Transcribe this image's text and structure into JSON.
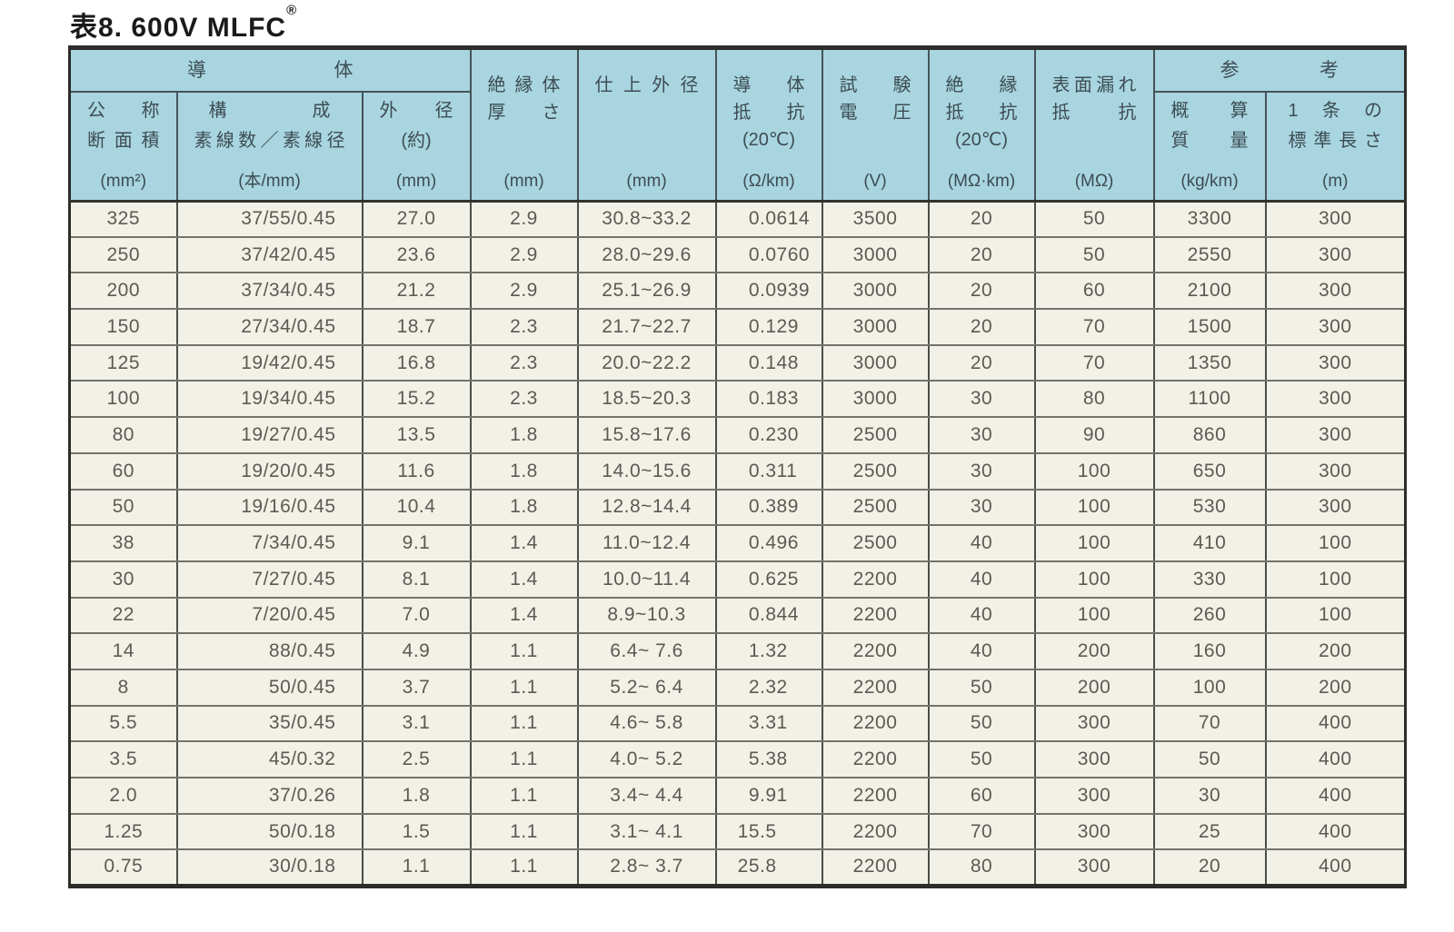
{
  "page": {
    "title": "表8. 600V MLFC",
    "registered_mark": "®"
  },
  "table": {
    "groups": [
      {
        "label": "導体",
        "span_columns": 3
      },
      {
        "label": "参考",
        "span_columns": 2
      }
    ],
    "columns": [
      {
        "id": "nominal-cross-section",
        "lines": [
          "公称",
          "断面積"
        ],
        "unit": "(mm²)"
      },
      {
        "id": "composition",
        "lines": [
          "構成",
          "素線数／素線径"
        ],
        "unit": "(本/mm)"
      },
      {
        "id": "conductor-outer-diameter",
        "lines": [
          "外径",
          "(約)"
        ],
        "unit": "(mm)"
      },
      {
        "id": "insulation-thickness",
        "lines": [
          "絶縁体",
          "厚さ"
        ],
        "unit": "(mm)"
      },
      {
        "id": "finished-outer-diameter",
        "lines": [
          "仕上外径"
        ],
        "unit": "(mm)"
      },
      {
        "id": "conductor-resistance",
        "lines": [
          "導体",
          "抵抗",
          "(20℃)"
        ],
        "unit": "(Ω/km)"
      },
      {
        "id": "test-voltage",
        "lines": [
          "試験",
          "電圧"
        ],
        "unit": "(V)"
      },
      {
        "id": "insulation-resistance",
        "lines": [
          "絶縁",
          "抵抗",
          "(20℃)"
        ],
        "unit": "(MΩ·km)"
      },
      {
        "id": "surface-leakage-resistance",
        "lines": [
          "表面漏れ",
          "抵抗"
        ],
        "unit": "(MΩ)"
      },
      {
        "id": "approximate-mass",
        "lines": [
          "概算",
          "質量"
        ],
        "unit": "(kg/km)"
      },
      {
        "id": "standard-length-per-piece",
        "lines": [
          "1条の",
          "標準長さ"
        ],
        "unit": "(m)"
      }
    ],
    "rows": [
      [
        "325",
        "37/55/0.45",
        "27.0",
        "2.9",
        "30.8~33.2",
        "0.0614",
        "3500",
        "20",
        "50",
        "3300",
        "300"
      ],
      [
        "250",
        "37/42/0.45",
        "23.6",
        "2.9",
        "28.0~29.6",
        "0.0760",
        "3000",
        "20",
        "50",
        "2550",
        "300"
      ],
      [
        "200",
        "37/34/0.45",
        "21.2",
        "2.9",
        "25.1~26.9",
        "0.0939",
        "3000",
        "20",
        "60",
        "2100",
        "300"
      ],
      [
        "150",
        "27/34/0.45",
        "18.7",
        "2.3",
        "21.7~22.7",
        "0.129",
        "3000",
        "20",
        "70",
        "1500",
        "300"
      ],
      [
        "125",
        "19/42/0.45",
        "16.8",
        "2.3",
        "20.0~22.2",
        "0.148",
        "3000",
        "20",
        "70",
        "1350",
        "300"
      ],
      [
        "100",
        "19/34/0.45",
        "15.2",
        "2.3",
        "18.5~20.3",
        "0.183",
        "3000",
        "30",
        "80",
        "1100",
        "300"
      ],
      [
        "80",
        "19/27/0.45",
        "13.5",
        "1.8",
        "15.8~17.6",
        "0.230",
        "2500",
        "30",
        "90",
        "860",
        "300"
      ],
      [
        "60",
        "19/20/0.45",
        "11.6",
        "1.8",
        "14.0~15.6",
        "0.311",
        "2500",
        "30",
        "100",
        "650",
        "300"
      ],
      [
        "50",
        "19/16/0.45",
        "10.4",
        "1.8",
        "12.8~14.4",
        "0.389",
        "2500",
        "30",
        "100",
        "530",
        "300"
      ],
      [
        "38",
        "7/34/0.45",
        "9.1",
        "1.4",
        "11.0~12.4",
        "0.496",
        "2500",
        "40",
        "100",
        "410",
        "100"
      ],
      [
        "30",
        "7/27/0.45",
        "8.1",
        "1.4",
        "10.0~11.4",
        "0.625",
        "2200",
        "40",
        "100",
        "330",
        "100"
      ],
      [
        "22",
        "7/20/0.45",
        "7.0",
        "1.4",
        "8.9~10.3",
        "0.844",
        "2200",
        "40",
        "100",
        "260",
        "100"
      ],
      [
        "14",
        "88/0.45",
        "4.9",
        "1.1",
        "6.4~ 7.6",
        "1.32",
        "2200",
        "40",
        "200",
        "160",
        "200"
      ],
      [
        "8",
        "50/0.45",
        "3.7",
        "1.1",
        "5.2~ 6.4",
        "2.32",
        "2200",
        "50",
        "200",
        "100",
        "200"
      ],
      [
        "5.5",
        "35/0.45",
        "3.1",
        "1.1",
        "4.6~ 5.8",
        "3.31",
        "2200",
        "50",
        "300",
        "70",
        "400"
      ],
      [
        "3.5",
        "45/0.32",
        "2.5",
        "1.1",
        "4.0~ 5.2",
        "5.38",
        "2200",
        "50",
        "300",
        "50",
        "400"
      ],
      [
        "2.0",
        "37/0.26",
        "1.8",
        "1.1",
        "3.4~ 4.4",
        "9.91",
        "2200",
        "60",
        "300",
        "30",
        "400"
      ],
      [
        "1.25",
        "50/0.18",
        "1.5",
        "1.1",
        "3.1~ 4.1",
        "15.5",
        "2200",
        "70",
        "300",
        "25",
        "400"
      ],
      [
        "0.75",
        "30/0.18",
        "1.1",
        "1.1",
        "2.8~ 3.7",
        "25.8",
        "2200",
        "80",
        "300",
        "20",
        "400"
      ]
    ],
    "colors": {
      "header_bg": "#a8d5e0",
      "row_bg": "#f1f1e8",
      "outer_border": "#2c2c28",
      "grid_vertical": "#4d4d49",
      "grid_horizontal": "#73736c",
      "header_text": "#3d4c54",
      "data_text": "#5b5b53",
      "title_text": "#1a1a1a"
    }
  }
}
